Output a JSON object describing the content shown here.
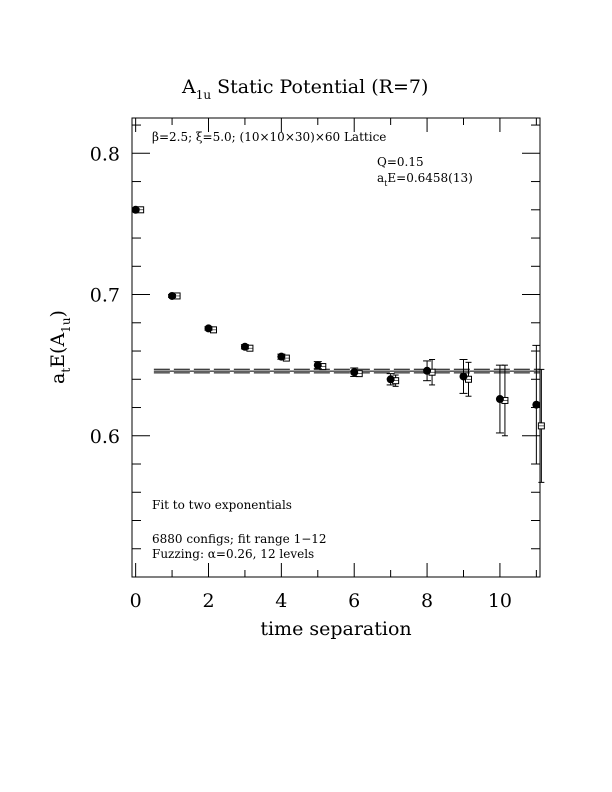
{
  "chart_data": {
    "type": "scatter",
    "title_main": "A",
    "title_sub": "1u",
    "title_rest": " Static Potential (R=7)",
    "xlabel": "time separation",
    "ylabel_a": "a",
    "ylabel_t": "t",
    "ylabel_b": "E(A",
    "ylabel_sub": "1u",
    "ylabel_c": ")",
    "xlim": [
      -0.1,
      11.1
    ],
    "ylim": [
      0.5,
      0.825
    ],
    "x_ticks": [
      0,
      2,
      4,
      6,
      8,
      10
    ],
    "x_tick_labels": [
      "0",
      "2",
      "4",
      "6",
      "8",
      "10"
    ],
    "y_ticks": [
      0.6,
      0.7,
      0.8
    ],
    "y_tick_labels": [
      "0.6",
      "0.7",
      "0.8"
    ],
    "grid": false,
    "annotations": {
      "lattice": "β=2.5; ξ=5.0; (10×10×30)×60 Lattice",
      "q": "Q=0.15",
      "energy_a": "a",
      "energy_t": "t",
      "energy_b": "E=0.6458(13)",
      "fit": "Fit to two exponentials",
      "configs": "6880 configs; fit range 1−12",
      "fuzzing": "Fuzzing: α=0.26, 12 levels"
    },
    "fit": {
      "value": 0.6458,
      "error": 0.0013,
      "x_start": 0.5,
      "x_end": 11.1
    },
    "series": [
      {
        "marker": "filled-circle",
        "points": [
          {
            "x": 0,
            "y": 0.76,
            "err": 0.0008
          },
          {
            "x": 1,
            "y": 0.699,
            "err": 0.001
          },
          {
            "x": 2,
            "y": 0.676,
            "err": 0.0012
          },
          {
            "x": 3,
            "y": 0.663,
            "err": 0.0015
          },
          {
            "x": 4,
            "y": 0.656,
            "err": 0.0018
          },
          {
            "x": 5,
            "y": 0.65,
            "err": 0.0025
          },
          {
            "x": 6,
            "y": 0.645,
            "err": 0.003
          },
          {
            "x": 7,
            "y": 0.64,
            "err": 0.004
          },
          {
            "x": 8,
            "y": 0.646,
            "err": 0.007
          },
          {
            "x": 9,
            "y": 0.642,
            "err": 0.012
          },
          {
            "x": 10,
            "y": 0.626,
            "err": 0.024
          },
          {
            "x": 11,
            "y": 0.622,
            "err": 0.042
          }
        ]
      },
      {
        "marker": "boxed-square",
        "points": [
          {
            "x": 0,
            "y": 0.76
          },
          {
            "x": 1,
            "y": 0.699
          },
          {
            "x": 2,
            "y": 0.675
          },
          {
            "x": 3,
            "y": 0.662
          },
          {
            "x": 4,
            "y": 0.655
          },
          {
            "x": 5,
            "y": 0.649
          },
          {
            "x": 6,
            "y": 0.644
          },
          {
            "x": 7,
            "y": 0.639,
            "err": 0.004
          },
          {
            "x": 8,
            "y": 0.645,
            "err": 0.009
          },
          {
            "x": 9,
            "y": 0.64,
            "err": 0.012
          },
          {
            "x": 10,
            "y": 0.625,
            "err": 0.025
          },
          {
            "x": 11,
            "y": 0.607,
            "err": 0.04
          }
        ]
      }
    ]
  }
}
